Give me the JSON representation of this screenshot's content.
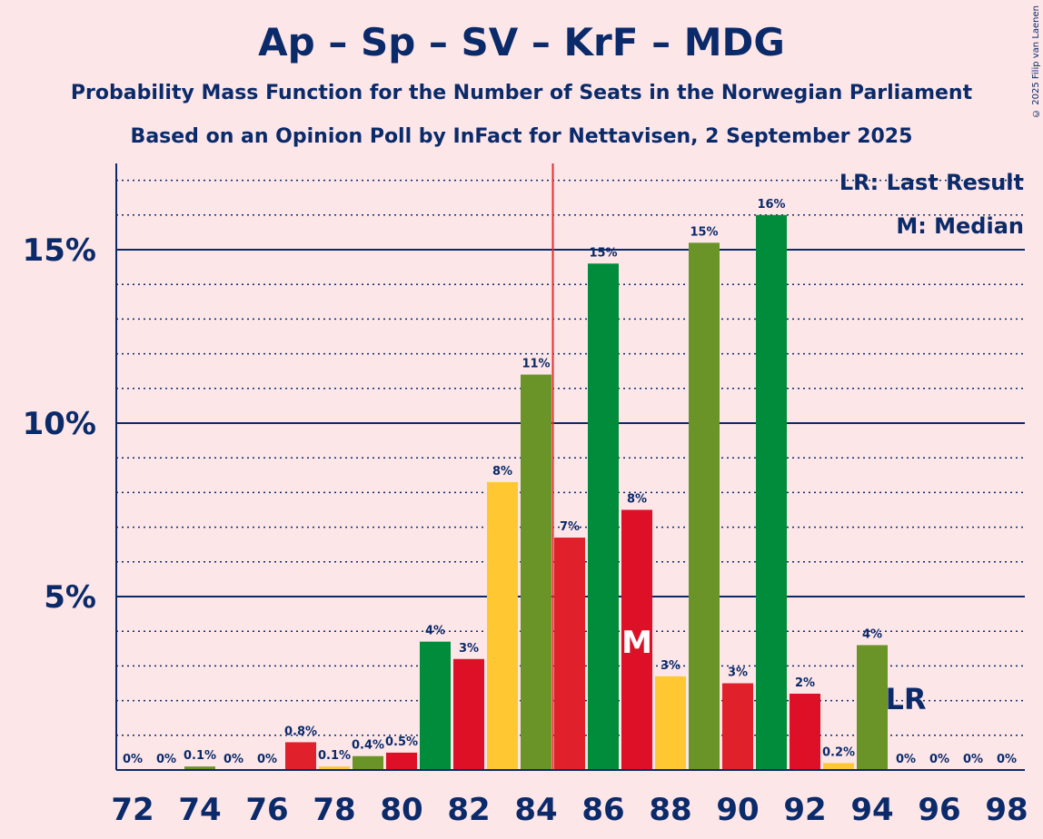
{
  "title": "Ap – Sp – SV – KrF – MDG",
  "subtitle1": "Probability Mass Function for the Number of Seats in the Norwegian Parliament",
  "subtitle2": "Based on an Opinion Poll by InFact for Nettavisen, 2 September 2025",
  "copyright": "© 2025 Filip van Laenen",
  "legend": {
    "last_result": "LR: Last Result",
    "median": "M: Median"
  },
  "markers": {
    "median_letter": "M",
    "last_result_letter": "LR"
  },
  "colors": {
    "background": "#fde6e8",
    "text": "#0a2a6a",
    "last_result_line": "#e03030"
  },
  "chart_data": {
    "type": "bar",
    "x": [
      72,
      73,
      74,
      75,
      76,
      77,
      78,
      79,
      80,
      81,
      82,
      83,
      84,
      85,
      86,
      87,
      88,
      89,
      90,
      91,
      92,
      93,
      94,
      95,
      96,
      97,
      98
    ],
    "values": [
      0,
      0,
      0.1,
      0,
      0,
      0.8,
      0.1,
      0.4,
      0.5,
      3.7,
      3.2,
      8.3,
      11.4,
      6.7,
      14.6,
      7.5,
      2.7,
      15.2,
      2.5,
      16.0,
      2.2,
      0.2,
      3.6,
      0,
      0,
      0,
      0
    ],
    "data_labels": [
      "0%",
      "0%",
      "0.1%",
      "0%",
      "0%",
      "0.8%",
      "0.1%",
      "0.4%",
      "0.5%",
      "4%",
      "3%",
      "8%",
      "11%",
      "7%",
      "15%",
      "8%",
      "3%",
      "15%",
      "3%",
      "16%",
      "2%",
      "0.2%",
      "4%",
      "0%",
      "0%",
      "0%",
      "0%"
    ],
    "bar_colors": [
      "#e0202a",
      "#ffc832",
      "#6b9428",
      "#008c3a",
      "#dd1028",
      "#e0202a",
      "#ffc832",
      "#6b9428",
      "#dd1028",
      "#008c3a",
      "#dd1028",
      "#ffc832",
      "#6b9428",
      "#e0202a",
      "#008c3a",
      "#dd1028",
      "#ffc832",
      "#6b9428",
      "#e0202a",
      "#008c3a",
      "#dd1028",
      "#ffc832",
      "#6b9428",
      "#008c3a",
      "#dd1028",
      "#ffc832",
      "#6b9428"
    ],
    "x_tick_labels": [
      "72",
      "74",
      "76",
      "78",
      "80",
      "82",
      "84",
      "86",
      "88",
      "90",
      "92",
      "94",
      "96",
      "98"
    ],
    "y_tick_labels": [
      "5%",
      "10%",
      "15%"
    ],
    "y_ticks": [
      5,
      10,
      15
    ],
    "ylim": [
      0,
      17.5
    ],
    "last_result_seat": 84.5,
    "median_seat": 87,
    "last_result_label_seat": 95,
    "grid": "dotted minor every 1%, solid major every 5%",
    "legend_position": "top-right"
  }
}
